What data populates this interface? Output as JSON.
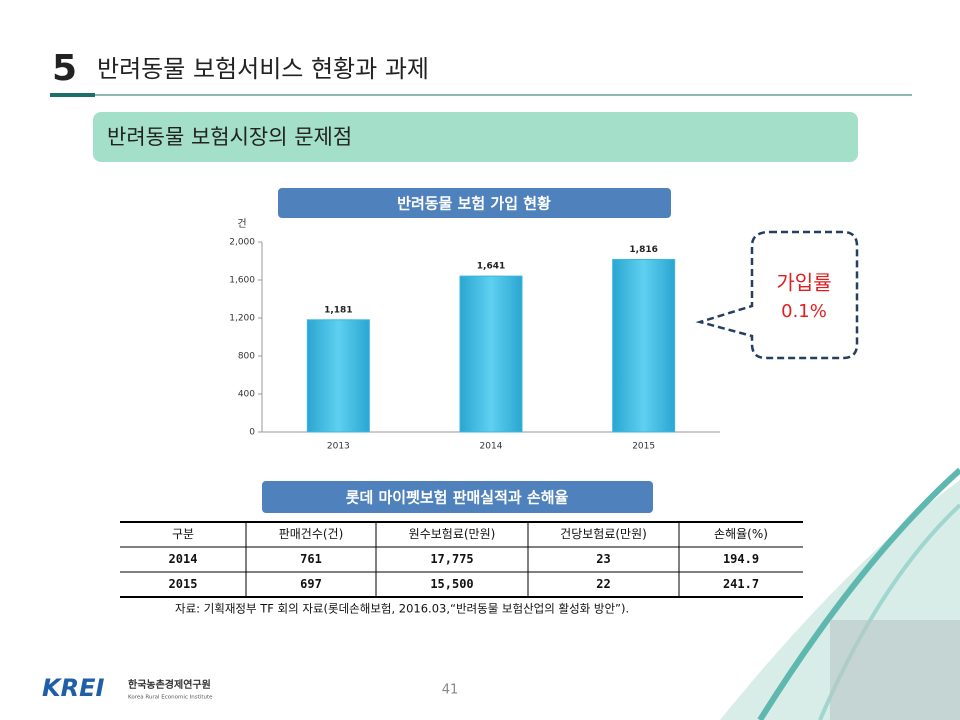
{
  "header": {
    "number": "5",
    "title": "반려동물 보험서비스 현황과 과제"
  },
  "section_title": "반려동물 보험시장의 문제점",
  "chart_data": {
    "type": "bar",
    "title": "반려동물 보험 가입 현황",
    "y_unit": "건",
    "categories": [
      "2013",
      "2014",
      "2015"
    ],
    "values": [
      1181,
      1641,
      1816
    ],
    "value_labels": [
      "1,181",
      "1,641",
      "1,816"
    ],
    "color": "#3ab7df",
    "ylim": [
      0,
      2000
    ],
    "yticks": [
      0,
      400,
      800,
      {
        "value": 1200,
        "label": "1,200"
      },
      {
        "value": 1600,
        "label": "1,600"
      },
      {
        "value": 2000,
        "label": "2,000"
      }
    ]
  },
  "callout": {
    "label": "가입률",
    "value": "0.1%"
  },
  "table": {
    "title": "롯데 마이펫보험 판매실적과 손해율",
    "header": [
      "구분",
      "판매건수(건)",
      "원수보험료(만원)",
      "건당보험료(만원)",
      "손해율(%)"
    ],
    "rows": [
      [
        "2014",
        "761",
        "17,775",
        "23",
        "194.9"
      ],
      [
        "2015",
        "697",
        "15,500",
        "22",
        "241.7"
      ]
    ],
    "source": "자료: 기획재정부 TF 회의 자료(롯데손해보험, 2016.03,“반려동물 보험산업의 활성화 방안”)."
  },
  "footer": {
    "logo": "KREI",
    "org_name": "한국농촌경제연구원",
    "org_name_en": "Korea Rural Economic Institute",
    "page": "41"
  }
}
